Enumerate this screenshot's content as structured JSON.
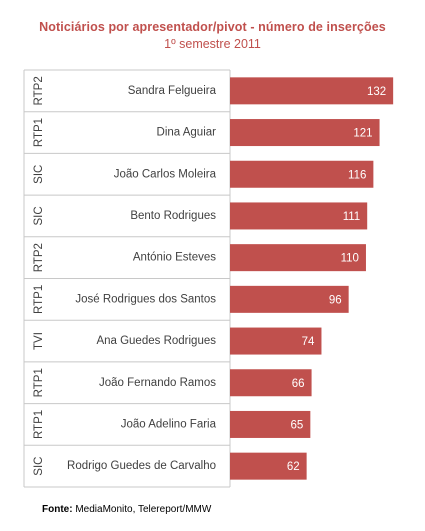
{
  "colors": {
    "bar": "#c0504d",
    "title": "#c0504d",
    "subtitle": "#c0504d",
    "text": "#404040",
    "value_label": "#ffffff",
    "grid": "#c8c8c8"
  },
  "chart_data": {
    "type": "bar",
    "orientation": "horizontal",
    "title": "Noticiários por apresentador/pivot - número de inserções",
    "subtitle": "1º semestre 2011",
    "categories": [
      "Sandra Felgueira",
      "Dina Aguiar",
      "João Carlos Moleira",
      "Bento Rodrigues",
      "António Esteves",
      "José Rodrigues dos Santos",
      "Ana Guedes Rodrigues",
      "João Fernando Ramos",
      "João Adelino Faria",
      "Rodrigo Guedes de Carvalho"
    ],
    "groups": [
      "RTP2",
      "RTP1",
      "SIC",
      "SIC",
      "RTP2",
      "RTP1",
      "TVI",
      "RTP1",
      "RTP1",
      "SIC"
    ],
    "values": [
      132,
      121,
      116,
      111,
      110,
      96,
      74,
      66,
      65,
      62
    ],
    "xlim": [
      0,
      140
    ],
    "data_labels": true,
    "legend": "none"
  },
  "source": {
    "label": "Fonte:",
    "text": "MediaMonito, Telereport/MMW"
  }
}
